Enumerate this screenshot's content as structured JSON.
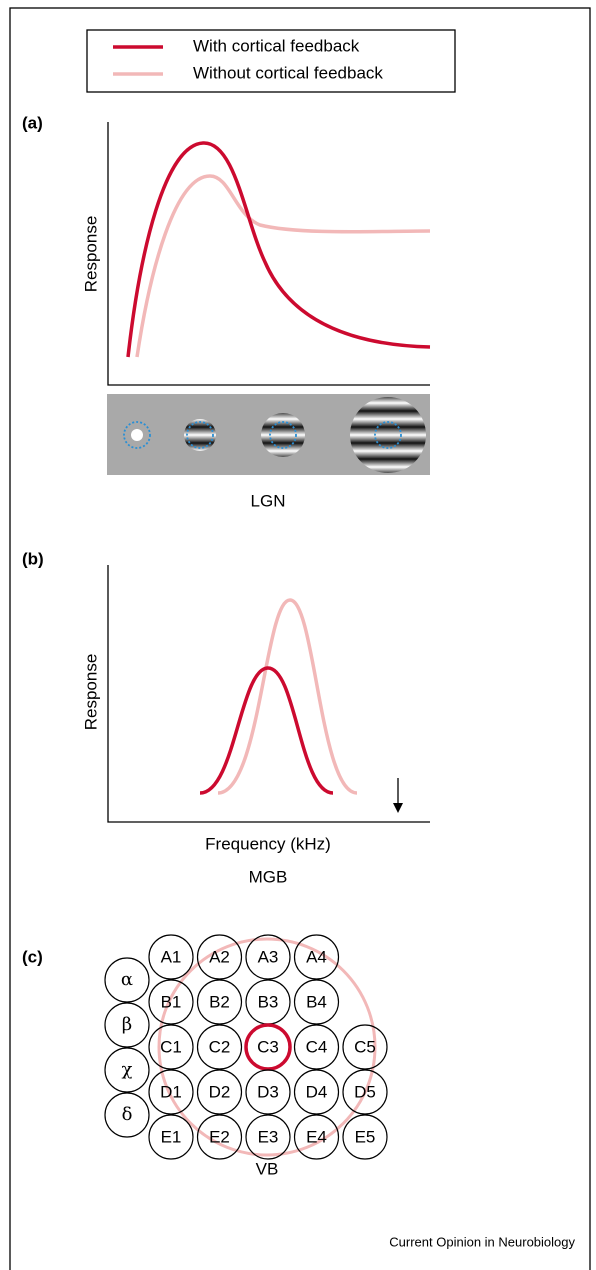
{
  "legend": {
    "items": [
      "With cortical feedback",
      "Without cortical feedback"
    ]
  },
  "panels": [
    {
      "label": "(a)",
      "y_axis_label": "Response",
      "caption": "LGN"
    },
    {
      "label": "(b)",
      "y_axis_label": "Response",
      "x_axis_label": "Frequency (kHz)",
      "caption": "MGB"
    },
    {
      "label": "(c)",
      "caption": "VB",
      "grid": [
        [
          "A1",
          "A2",
          "A3",
          "A4"
        ],
        [
          "B1",
          "B2",
          "B3",
          "B4"
        ],
        [
          "C1",
          "C2",
          "C3",
          "C4",
          "C5"
        ],
        [
          "D1",
          "D2",
          "D3",
          "D4",
          "D5"
        ],
        [
          "E1",
          "E2",
          "E3",
          "E4",
          "E5"
        ]
      ],
      "greek": [
        "α",
        "β",
        "χ",
        "δ"
      ]
    }
  ],
  "footer": "Current Opinion in Neurobiology"
}
